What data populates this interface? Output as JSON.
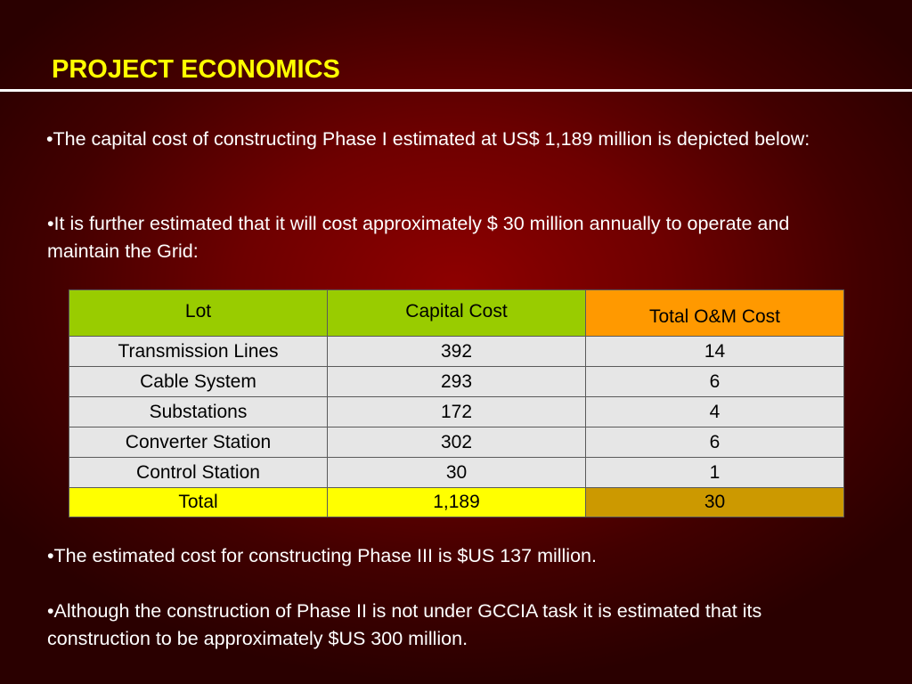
{
  "title": "PROJECT ECONOMICS",
  "bullets": {
    "b1": "•The capital cost of constructing Phase I estimated at US$ 1,189 million is depicted below:",
    "b2": "•It is further estimated that it will cost approximately $ 30 million annually to operate and maintain the Grid:",
    "b3": "•The estimated cost for constructing Phase III is $US 137 million.",
    "b4": "•Although the construction of Phase II is not under GCCIA task it is estimated that its construction to be approximately $US 300 million."
  },
  "table": {
    "headers": [
      "Lot",
      "Capital Cost",
      "Total O&M Cost"
    ],
    "rows": [
      [
        "Transmission Lines",
        "392",
        "14"
      ],
      [
        "Cable System",
        "293",
        "6"
      ],
      [
        "Substations",
        "172",
        "4"
      ],
      [
        "Converter Station",
        "302",
        "6"
      ],
      [
        "Control Station",
        "30",
        "1"
      ]
    ],
    "total": [
      "Total",
      "1,189",
      "30"
    ]
  },
  "colors": {
    "title": "#ffff00",
    "header_green": "#99cc00",
    "header_orange": "#ff9900",
    "row_gray": "#e6e6e6",
    "total_yellow": "#ffff00",
    "total_gold": "#cc9900"
  }
}
